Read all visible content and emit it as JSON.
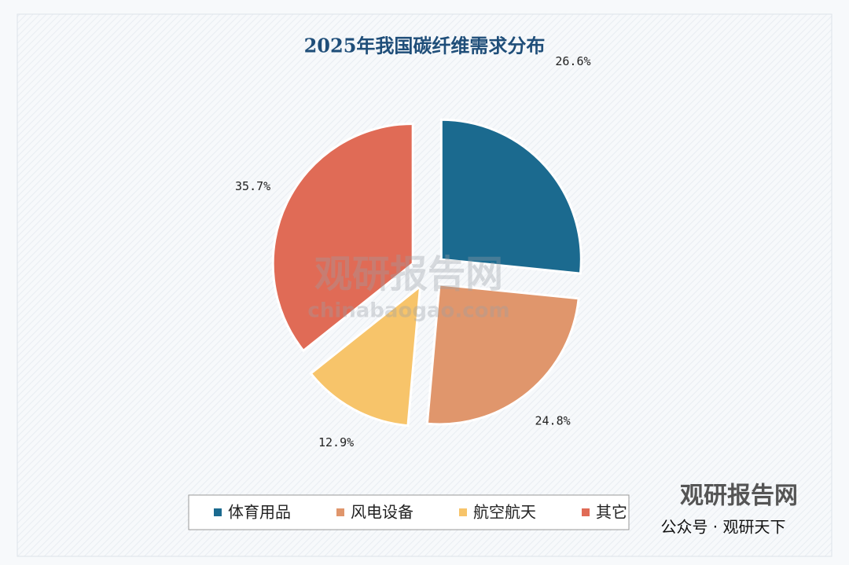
{
  "chart_data": {
    "type": "pie",
    "title": "2025年我国碳纤维需求分布",
    "categories": [
      "体育用品",
      "风电设备",
      "航空航天",
      "其它"
    ],
    "values": [
      26.6,
      24.8,
      12.9,
      35.7
    ],
    "value_labels": [
      "26.6%",
      "24.8%",
      "12.9%",
      "35.7%"
    ],
    "colors": [
      "#1b6a8f",
      "#e0966c",
      "#f7c46a",
      "#e06b56"
    ],
    "legend": "bottom"
  },
  "watermark": {
    "brand": "观研报告网",
    "site": "chinabaogao.com",
    "account": "公众号 · 观研天下"
  }
}
